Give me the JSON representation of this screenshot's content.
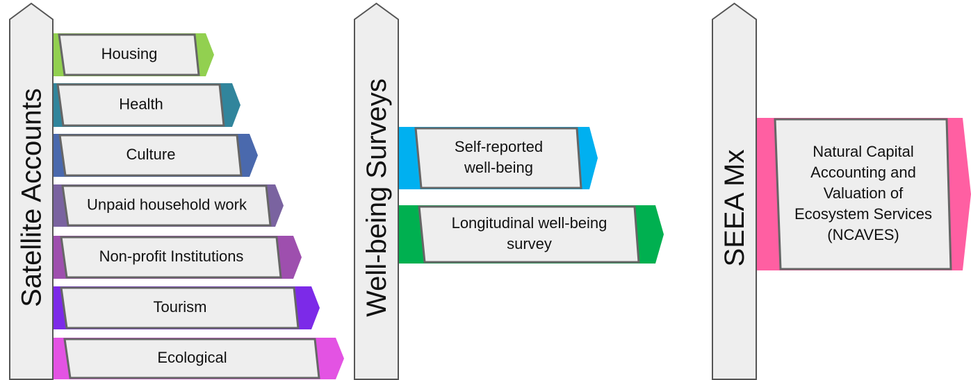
{
  "posts": [
    {
      "label": "Satellite Accounts",
      "signs": [
        {
          "lines": [
            "Housing"
          ],
          "color": "#92d050"
        },
        {
          "lines": [
            "Health"
          ],
          "color": "#31859c"
        },
        {
          "lines": [
            "Culture"
          ],
          "color": "#4a69ad"
        },
        {
          "lines": [
            "Unpaid household work"
          ],
          "color": "#7a63a0"
        },
        {
          "lines": [
            "Non-profit Institutions"
          ],
          "color": "#9e4fae"
        },
        {
          "lines": [
            "Tourism"
          ],
          "color": "#7c2ae8"
        },
        {
          "lines": [
            "Ecological"
          ],
          "color": "#e353e3"
        }
      ]
    },
    {
      "label": "Well-being Surveys",
      "signs": [
        {
          "lines": [
            "Self-reported",
            "well-being"
          ],
          "color": "#00b0f0"
        },
        {
          "lines": [
            "Longitudinal well-being",
            "survey"
          ],
          "color": "#00b050"
        }
      ]
    },
    {
      "label": "SEEA Mx",
      "signs": [
        {
          "lines": [
            "Natural Capital",
            "Accounting and",
            "Valuation of",
            "Ecosystem Services",
            "(NCAVES)"
          ],
          "color": "#ff5fa2"
        }
      ]
    }
  ]
}
